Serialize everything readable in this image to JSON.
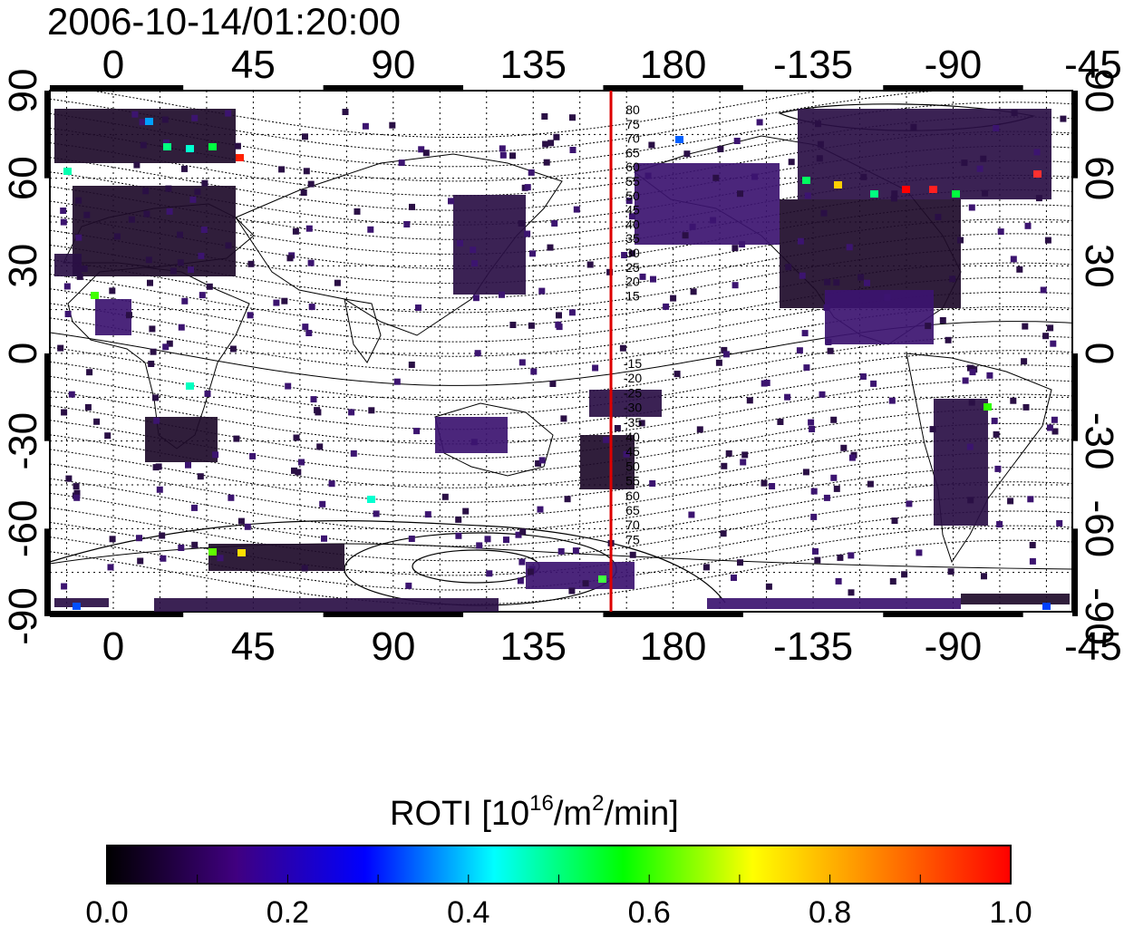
{
  "title": "2006-10-14/01:20:00",
  "colorbar": {
    "label_prefix": "ROTI  [10",
    "label_sup1": "16",
    "label_mid": "/m",
    "label_sup2": "2",
    "label_suffix": "/min]",
    "ticks": [
      "0.0",
      "0.2",
      "0.4",
      "0.6",
      "0.8",
      "1.0"
    ],
    "colors": [
      "#000000",
      "#400080",
      "#0000ff",
      "#00ffff",
      "#00ff00",
      "#ffff00",
      "#ff8000",
      "#ff0000"
    ]
  },
  "map": {
    "lon_ticks": [
      "0",
      "45",
      "90",
      "135",
      "180",
      "-135",
      "-90",
      "-45"
    ],
    "lat_ticks": [
      "90",
      "60",
      "30",
      "0",
      "-30",
      "-60",
      "-90"
    ],
    "highlight_line_color": "#dd0000",
    "highlight_longitude": 160,
    "contour_labels_north": [
      "80",
      "75",
      "70",
      "65",
      "60",
      "55",
      "50",
      "45",
      "40",
      "35",
      "30",
      "25",
      "20",
      "15"
    ],
    "contour_labels_south": [
      "-15",
      "-20",
      "-25",
      "-30",
      "-35",
      "40",
      "45",
      "50",
      "55",
      "60",
      "65",
      "70",
      "75"
    ]
  }
}
